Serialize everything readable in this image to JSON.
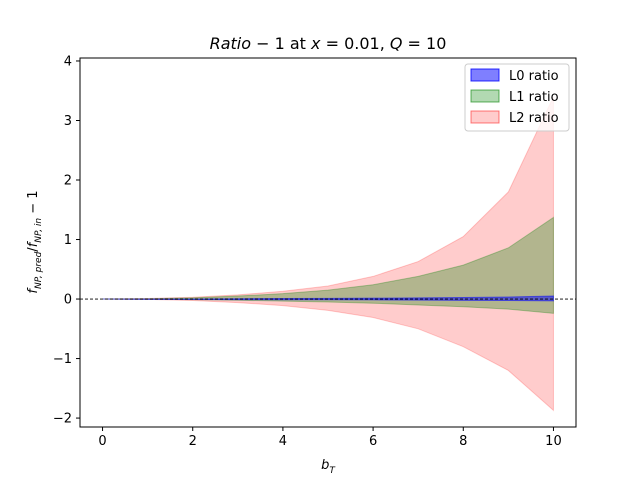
{
  "chart_data": {
    "type": "area",
    "title": {
      "prefix": "Ratio",
      "middle": " − 1 at ",
      "x_var": "x",
      "x_eq": " = 0.01, ",
      "q_var": "Q",
      "q_eq": " = 10"
    },
    "xlabel": {
      "main": "b",
      "sub": "T"
    },
    "ylabel": {
      "f1": "f",
      "sub1": "NP, pred",
      "slash": "/",
      "f2": "f",
      "sub2": "NP, in",
      "tail": " − 1"
    },
    "xlim": [
      -0.5,
      10.5
    ],
    "ylim": [
      -2.15,
      4.05
    ],
    "xticks": [
      0,
      2,
      4,
      6,
      8,
      10
    ],
    "yticks": [
      -2,
      -1,
      0,
      1,
      2,
      3,
      4
    ],
    "legend_position": "upper right",
    "grid": false,
    "reference_line": {
      "y": 0,
      "style": "dashed",
      "color": "#000000"
    },
    "x": [
      0,
      1,
      2,
      3,
      4,
      5,
      6,
      7,
      8,
      9,
      10
    ],
    "series": [
      {
        "name": "L0 ratio",
        "color": "#0000ff",
        "upper": [
          0,
          0.0,
          0.0,
          0.005,
          0.01,
          0.012,
          0.015,
          0.02,
          0.025,
          0.035,
          0.05
        ],
        "lower": [
          0,
          -0.005,
          -0.008,
          -0.01,
          -0.012,
          -0.013,
          -0.015,
          -0.018,
          -0.022,
          -0.025,
          -0.03
        ]
      },
      {
        "name": "L1 ratio",
        "color": "#008000",
        "upper": [
          0,
          0.005,
          0.02,
          0.05,
          0.09,
          0.15,
          0.24,
          0.38,
          0.57,
          0.86,
          1.37
        ],
        "lower": [
          0,
          -0.003,
          -0.01,
          -0.02,
          -0.035,
          -0.05,
          -0.07,
          -0.1,
          -0.13,
          -0.17,
          -0.24
        ]
      },
      {
        "name": "L2 ratio",
        "color": "#ff0000",
        "upper": [
          0,
          0.008,
          0.03,
          0.07,
          0.13,
          0.22,
          0.38,
          0.63,
          1.05,
          1.8,
          3.4
        ],
        "lower": [
          0,
          -0.006,
          -0.025,
          -0.06,
          -0.11,
          -0.19,
          -0.31,
          -0.5,
          -0.8,
          -1.2,
          -1.87
        ]
      }
    ]
  }
}
